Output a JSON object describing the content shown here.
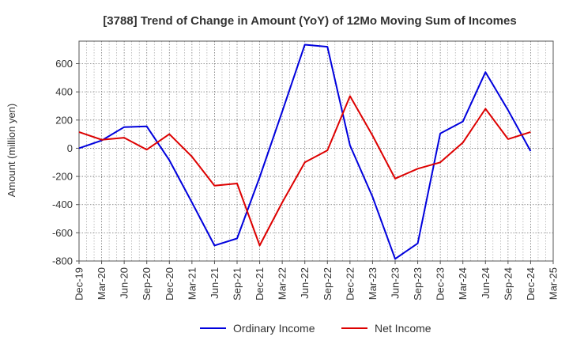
{
  "chart_data": {
    "type": "line",
    "title": "[3788]  Trend of Change in Amount (YoY) of 12Mo Moving Sum of Incomes",
    "xlabel": "",
    "ylabel": "Amount (million yen)",
    "categories": [
      "Dec-19",
      "Mar-20",
      "Jun-20",
      "Sep-20",
      "Dec-20",
      "Mar-21",
      "Jun-21",
      "Sep-21",
      "Dec-21",
      "Mar-22",
      "Jun-22",
      "Sep-22",
      "Dec-22",
      "Mar-23",
      "Jun-23",
      "Sep-23",
      "Dec-23",
      "Mar-24",
      "Jun-24",
      "Sep-24",
      "Dec-24",
      "Mar-25"
    ],
    "ylim": [
      -800,
      760
    ],
    "yticks": [
      -800,
      -600,
      -400,
      -200,
      0,
      200,
      400,
      600
    ],
    "grid": true,
    "legend_position": "bottom",
    "series": [
      {
        "name": "Ordinary Income",
        "color": "#0000dd",
        "values": [
          0,
          55,
          150,
          155,
          -85,
          -385,
          -690,
          -640,
          -205,
          260,
          735,
          720,
          20,
          -345,
          -785,
          -675,
          105,
          190,
          540,
          270,
          -20,
          null
        ]
      },
      {
        "name": "Net Income",
        "color": "#dd0000",
        "values": [
          115,
          60,
          75,
          -10,
          100,
          -60,
          -265,
          -250,
          -690,
          -385,
          -100,
          -15,
          370,
          90,
          -215,
          -145,
          -100,
          40,
          280,
          65,
          115,
          null
        ]
      }
    ]
  }
}
